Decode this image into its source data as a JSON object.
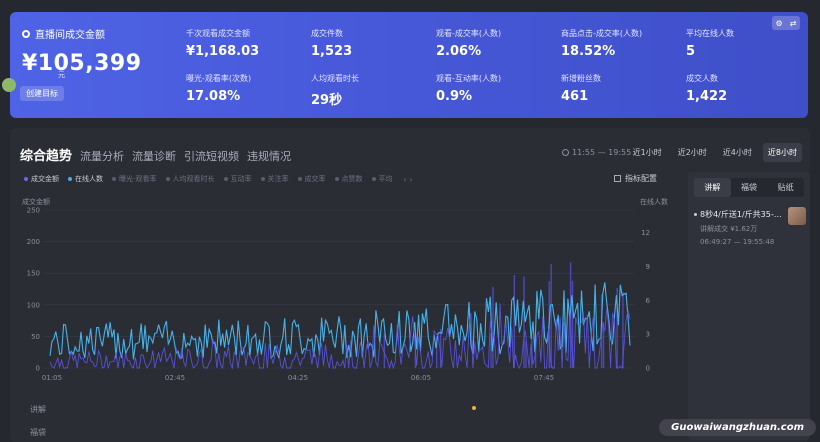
{
  "banner": {
    "main_label": "直播间成交金额",
    "main_value": "¥105,399",
    "main_unit": "元",
    "goal_button": "创建目标",
    "stats": [
      {
        "label": "千次观看成交金额",
        "value": "¥1,168.03"
      },
      {
        "label": "成交件数",
        "value": "1,523"
      },
      {
        "label": "观看-成交率(人数)",
        "value": "2.06%"
      },
      {
        "label": "商品点击-成交率(人数)",
        "value": "18.52%"
      },
      {
        "label": "平均在线人数",
        "value": "5"
      },
      {
        "label": "曝光-观看率(次数)",
        "value": "17.08%"
      },
      {
        "label": "人均观看时长",
        "value": "29秒"
      },
      {
        "label": "观看-互动率(人数)",
        "value": "0.9%"
      },
      {
        "label": "新增粉丝数",
        "value": "461"
      },
      {
        "label": "成交人数",
        "value": "1,422"
      }
    ]
  },
  "panel": {
    "tabs": [
      "综合趋势",
      "流量分析",
      "流量诊断",
      "引流短视频",
      "违规情况"
    ],
    "time_range": "11:55 — 19:55",
    "range_buttons": [
      "近1小时",
      "近2小时",
      "近4小时",
      "近8小时"
    ],
    "legend": [
      "成交金额",
      "在线人数",
      "曝光-观看率",
      "人均观看时长",
      "互动率",
      "关注率",
      "成交率",
      "点赞数",
      "平均"
    ],
    "config_label": "指标配置",
    "side_labels": [
      "讲解",
      "福袋"
    ]
  },
  "sidebar": {
    "tabs": [
      "讲解",
      "福袋",
      "贴纸"
    ],
    "product_title": "8秒4/斤送1/斤共35-4...",
    "product_sub1": "讲解成交 ¥1.62万",
    "product_sub2": "06:49:27 — 19:55:48"
  },
  "chart_data": {
    "type": "line",
    "ylabel": "成交金额",
    "ylabel_right": "在线人数",
    "ylim": [
      0,
      250
    ],
    "y2lim": [
      0,
      14
    ],
    "yticks": [
      0,
      50,
      100,
      150,
      200,
      250
    ],
    "y2ticks": [
      0,
      3,
      6,
      9,
      12
    ],
    "xticks": [
      "01:05",
      "02:45",
      "04:25",
      "06:05",
      "07:45"
    ],
    "series": [
      {
        "name": "成交金额",
        "color": "#5b55e8"
      },
      {
        "name": "在线人数",
        "color": "#46b2ea"
      }
    ]
  },
  "watermark": "Guowaiwangzhuan.com"
}
